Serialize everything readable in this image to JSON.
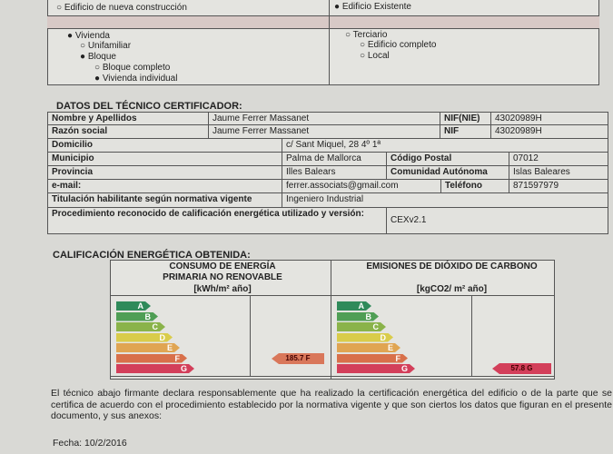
{
  "building": {
    "new": "○ Edificio de nueva construcción",
    "existing": "● Edificio Existente",
    "left": [
      "● Vivienda",
      "○ Unifamiliar",
      "● Bloque",
      "○ Bloque completo",
      "● Vivienda individual"
    ],
    "right": [
      "○ Terciario",
      "○ Edificio completo",
      "○ Local"
    ]
  },
  "tech": {
    "title": "DATOS DEL TÉCNICO CERTIFICADOR:",
    "name_label": "Nombre y Apellidos",
    "name": "Jaume Ferrer Massanet",
    "nifnie_label": "NIF(NIE)",
    "nifnie": "43020989H",
    "social_label": "Razón social",
    "social": "Jaume Ferrer Massanet",
    "nif_label": "NIF",
    "nif": "43020989H",
    "dom_label": "Domicilio",
    "dom": "c/ Sant Miquel, 28 4º 1ª",
    "mun_label": "Municipio",
    "mun": "Palma de Mallorca",
    "cp_label": "Código Postal",
    "cp": "07012",
    "prov_label": "Provincia",
    "prov": "Illes Balears",
    "ca_label": "Comunidad Autónoma",
    "ca": "Islas Baleares",
    "email_label": "e-mail:",
    "email": "ferrer.associats@gmail.com",
    "tel_label": "Teléfono",
    "tel": "871597979",
    "tit_label": "Titulación habilitante según normativa vigente",
    "tit": "Ingeniero Industrial",
    "proc_label": "Procedimiento reconocido de calificación energética utilizado y versión:",
    "proc": "CEXv2.1"
  },
  "rating": {
    "title": "CALIFICACIÓN ENERGÉTICA OBTENIDA:",
    "consumo_header": "CONSUMO DE ENERGÍA PRIMARIA NO RENOVABLE",
    "consumo_unit": "[kWh/m² año]",
    "emis_header": "EMISIONES DE DIÓXIDO DE CARBONO",
    "emis_unit": "[kgCO2/ m² año]",
    "letters": [
      "A",
      "B",
      "C",
      "D",
      "E",
      "F",
      "G"
    ],
    "colors": [
      "#2f8a5a",
      "#4f9e55",
      "#8ab34a",
      "#d9cc4a",
      "#e0a552",
      "#d8704a",
      "#d33f5a"
    ],
    "consumo_value": "185.7 F",
    "consumo_letter": "F",
    "emis_value": "57.8 G",
    "emis_letter": "G"
  },
  "footer": {
    "text": "El técnico abajo firmante declara responsablemente que ha realizado la certificación energética del edificio o de la parte que se certifica de acuerdo con el procedimiento establecido por la normativa vigente y que son ciertos los datos que figuran en el presente documento, y sus anexos:",
    "date": "Fecha: 10/2/2016"
  }
}
